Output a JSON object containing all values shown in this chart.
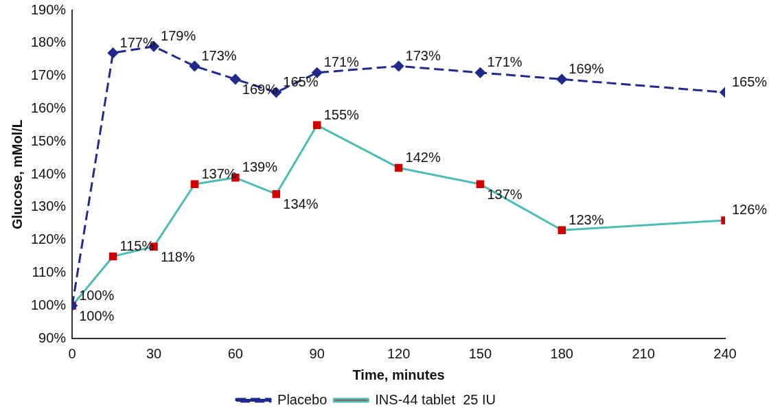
{
  "chart_data": {
    "type": "line",
    "xlabel": "Time, minutes",
    "ylabel": "Glucose, mMol/L",
    "xlim": [
      0,
      240
    ],
    "xticks": [
      0,
      30,
      60,
      90,
      120,
      150,
      180,
      210,
      240
    ],
    "ylim": [
      90,
      190
    ],
    "yticks": [
      {
        "value": 90,
        "label": "90%"
      },
      {
        "value": 100,
        "label": "100%"
      },
      {
        "value": 110,
        "label": "110%"
      },
      {
        "value": 120,
        "label": "120%"
      },
      {
        "value": 130,
        "label": "130%"
      },
      {
        "value": 140,
        "label": "140%"
      },
      {
        "value": 150,
        "label": "150%"
      },
      {
        "value": 160,
        "label": "160%"
      },
      {
        "value": 170,
        "label": "170%"
      },
      {
        "value": 180,
        "label": "180%"
      },
      {
        "value": 190,
        "label": "190%"
      }
    ],
    "x": [
      0,
      15,
      30,
      45,
      60,
      75,
      90,
      120,
      150,
      180,
      240
    ],
    "series": [
      {
        "name": "Placebo",
        "color": "#1f2a8c",
        "line_style": "dashed",
        "marker": "diamond",
        "values": [
          100,
          177,
          179,
          173,
          169,
          165,
          171,
          173,
          171,
          169,
          165
        ],
        "value_labels": [
          "100%",
          "177%",
          "179%",
          "173%",
          "169%",
          "165%",
          "171%",
          "173%",
          "171%",
          "169%",
          "165%"
        ]
      },
      {
        "name": "INS-44 tablet  25 IU",
        "color": "#4bbdb6",
        "line_style": "solid",
        "marker": "square",
        "colors": [
          "#d40000",
          "#d40000",
          "#d40000",
          "#d40000",
          "#d40000",
          "#d40000",
          "#d40000",
          "#d40000",
          "#d40000",
          "#d40000",
          "#d40000"
        ],
        "values": [
          100,
          115,
          118,
          137,
          139,
          134,
          155,
          142,
          137,
          123,
          126
        ],
        "value_labels": [
          "100%",
          "115%",
          "118%",
          "137%",
          "139%",
          "134%",
          "155%",
          "142%",
          "137%",
          "123%",
          "126%"
        ]
      }
    ],
    "grid": false,
    "legend": "bottom"
  }
}
